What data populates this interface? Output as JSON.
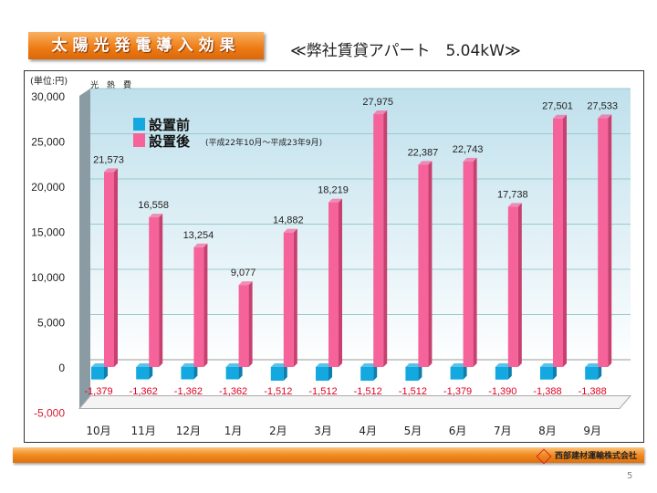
{
  "title": "太陽光発電導入効果",
  "subtitle": "≪弊社賃貸アパート　5.04kW≫",
  "footer": {
    "company": "西部建材運輸株式会社"
  },
  "page_number": "5",
  "colors": {
    "before": "#13a8e0",
    "after": "#f5639a",
    "negative_label": "#e00020"
  },
  "chart_data": {
    "type": "bar",
    "unit_label": "(単位:円)",
    "ylabel": "光　熱　費",
    "ylim": [
      -5000,
      30000
    ],
    "yticks": [
      "30,000",
      "25,000",
      "20,000",
      "15,000",
      "10,000",
      "5,000",
      "0",
      "-5,000"
    ],
    "ytick_values": [
      30000,
      25000,
      20000,
      15000,
      10000,
      5000,
      0,
      -5000
    ],
    "categories": [
      "10月",
      "11月",
      "12月",
      "1月",
      "2月",
      "3月",
      "4月",
      "5月",
      "6月",
      "7月",
      "8月",
      "9月"
    ],
    "legend_note": "(平成22年10月～平成23年9月)",
    "series": [
      {
        "name": "設置前",
        "values": [
          -1379,
          -1362,
          -1362,
          -1362,
          -1512,
          -1512,
          -1512,
          -1512,
          -1379,
          -1390,
          -1388,
          -1388
        ],
        "labels": [
          "-1,379",
          "-1,362",
          "-1,362",
          "-1,362",
          "-1,512",
          "-1,512",
          "-1,512",
          "-1,512",
          "-1,379",
          "-1,390",
          "-1,388",
          "-1,388"
        ]
      },
      {
        "name": "設置後",
        "values": [
          21573,
          16558,
          13254,
          9077,
          14882,
          18219,
          27975,
          22387,
          22743,
          17738,
          27501,
          27533
        ],
        "labels": [
          "21,573",
          "16,558",
          "13,254",
          "9,077",
          "14,882",
          "18,219",
          "27,975",
          "22,387",
          "22,743",
          "17,738",
          "27,501",
          "27,533"
        ]
      }
    ]
  }
}
